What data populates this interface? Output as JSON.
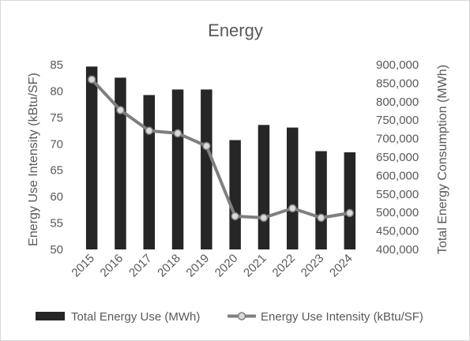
{
  "chart_data": {
    "type": "bar+line",
    "title": "Energy",
    "categories": [
      "2015",
      "2016",
      "2017",
      "2018",
      "2019",
      "2020",
      "2021",
      "2022",
      "2023",
      "2024"
    ],
    "series": [
      {
        "name": "Total Energy Use (MWh)",
        "type": "bar",
        "axis": "right",
        "color": "#262626",
        "values": [
          895000,
          865000,
          818000,
          833000,
          833000,
          696000,
          737000,
          730000,
          666000,
          663000
        ]
      },
      {
        "name": "Energy Use Intensity (kBtu/SF)",
        "type": "line",
        "axis": "left",
        "color": "#7f7f7f",
        "marker_fill": "#d9d9d9",
        "values": [
          82.2,
          76.4,
          72.5,
          72.0,
          69.6,
          56.3,
          56.0,
          57.8,
          56.0,
          56.9
        ]
      }
    ],
    "y_left": {
      "label": "Energy Use Intensity (kBtu/SF)",
      "ylim": [
        50,
        85
      ],
      "ticks": [
        "50",
        "55",
        "60",
        "65",
        "70",
        "75",
        "80",
        "85"
      ]
    },
    "y_right": {
      "label": "Total Energy Consumption (MWh)",
      "ylim": [
        400000,
        900000
      ],
      "ticks": [
        "400,000",
        "450,000",
        "500,000",
        "550,000",
        "600,000",
        "650,000",
        "700,000",
        "750,000",
        "800,000",
        "850,000",
        "900,000"
      ]
    },
    "grid": false,
    "legend": "bottom"
  }
}
